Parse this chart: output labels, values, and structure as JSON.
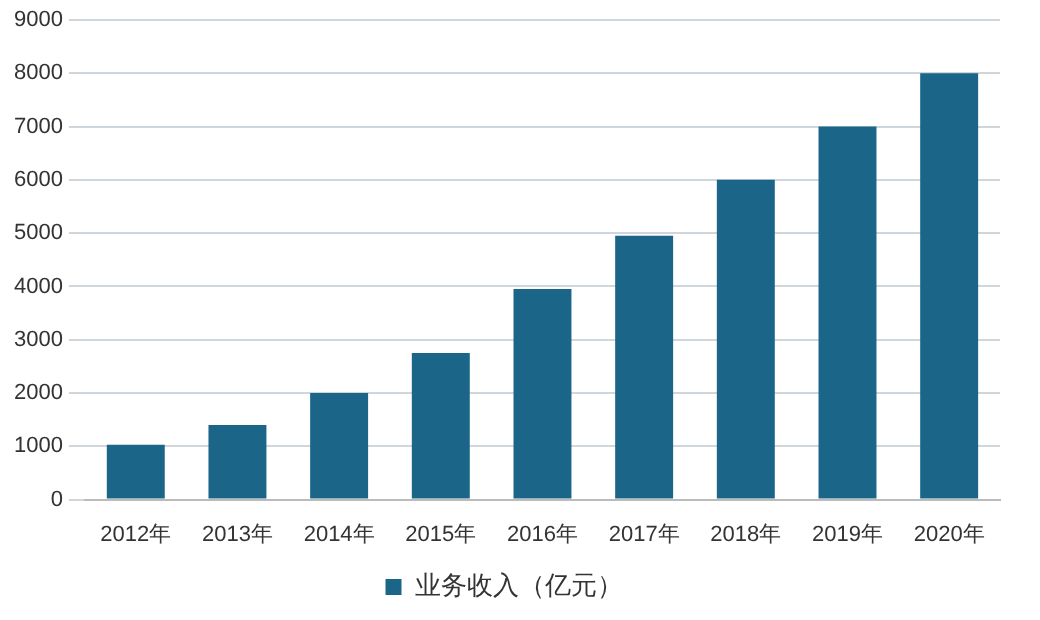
{
  "chart_data": {
    "type": "bar",
    "categories": [
      "2012年",
      "2013年",
      "2014年",
      "2015年",
      "2016年",
      "2017年",
      "2018年",
      "2019年",
      "2020年"
    ],
    "series": [
      {
        "name": "业务收入（亿元）",
        "color": "#1b6688",
        "values": [
          1030,
          1400,
          2000,
          2750,
          3950,
          4950,
          6000,
          7000,
          8000
        ]
      }
    ],
    "ylim": [
      0,
      9000
    ],
    "yticks": [
      0,
      1000,
      2000,
      3000,
      4000,
      5000,
      6000,
      7000,
      8000,
      9000
    ],
    "grid": "y",
    "legend": "bottom"
  }
}
